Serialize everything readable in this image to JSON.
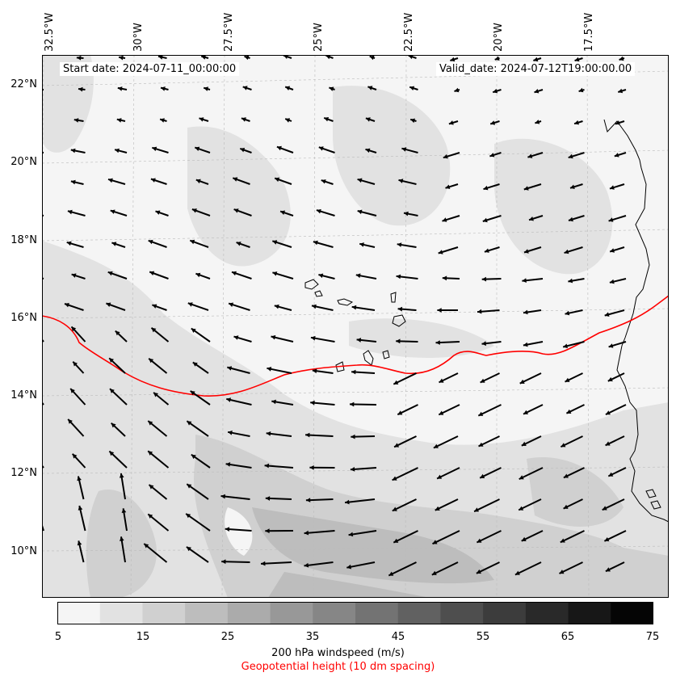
{
  "header": {
    "start_date": "Start date: 2024-07-11_00:00:00",
    "valid_date": "Valid_date: 2024-07-12T19:00:00.00"
  },
  "axes": {
    "lon_labels": [
      "32.5°W",
      "30°W",
      "27.5°W",
      "25°W",
      "22.5°W",
      "20°W",
      "17.5°W"
    ],
    "lat_labels": [
      "22°N",
      "20°N",
      "18°N",
      "16°N",
      "14°N",
      "12°N",
      "10°N"
    ]
  },
  "colorbar": {
    "ticks": [
      "5",
      "15",
      "25",
      "35",
      "45",
      "55",
      "65",
      "75"
    ],
    "colors": [
      "#f5f5f5",
      "#e2e2e2",
      "#d0d0d0",
      "#bdbdbd",
      "#ababab",
      "#989898",
      "#868686",
      "#737373",
      "#616161",
      "#4e4e4e",
      "#3c3c3c",
      "#292929",
      "#171717",
      "#050505"
    ],
    "label": "200 hPa windspeed (m/s)",
    "contour_label": "Geopotential height (10 dm spacing)",
    "contour_color": "#ff0000"
  }
}
